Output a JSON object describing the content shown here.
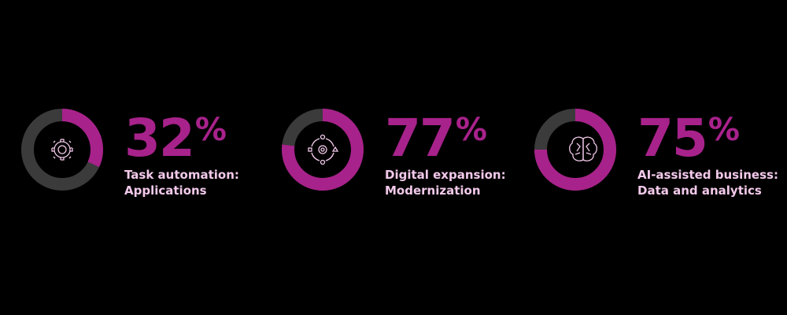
{
  "chart_data": [
    {
      "type": "donut",
      "values": [
        32
      ],
      "value_labels": [
        "32%"
      ],
      "lim": [
        0,
        100
      ],
      "label": [
        "Task automation:",
        "Applications"
      ],
      "color": "#a8228b",
      "track_color": "#3b3b3b"
    },
    {
      "type": "donut",
      "values": [
        77
      ],
      "value_labels": [
        "77%"
      ],
      "lim": [
        0,
        100
      ],
      "label": [
        "Digital expansion:",
        "Modernization"
      ],
      "color": "#a8228b",
      "track_color": "#3b3b3b"
    },
    {
      "type": "donut",
      "values": [
        75
      ],
      "value_labels": [
        "75%"
      ],
      "lim": [
        0,
        100
      ],
      "label": [
        "AI-assisted business:",
        "Data and analytics"
      ],
      "color": "#a8228b",
      "track_color": "#3b3b3b"
    }
  ]
}
